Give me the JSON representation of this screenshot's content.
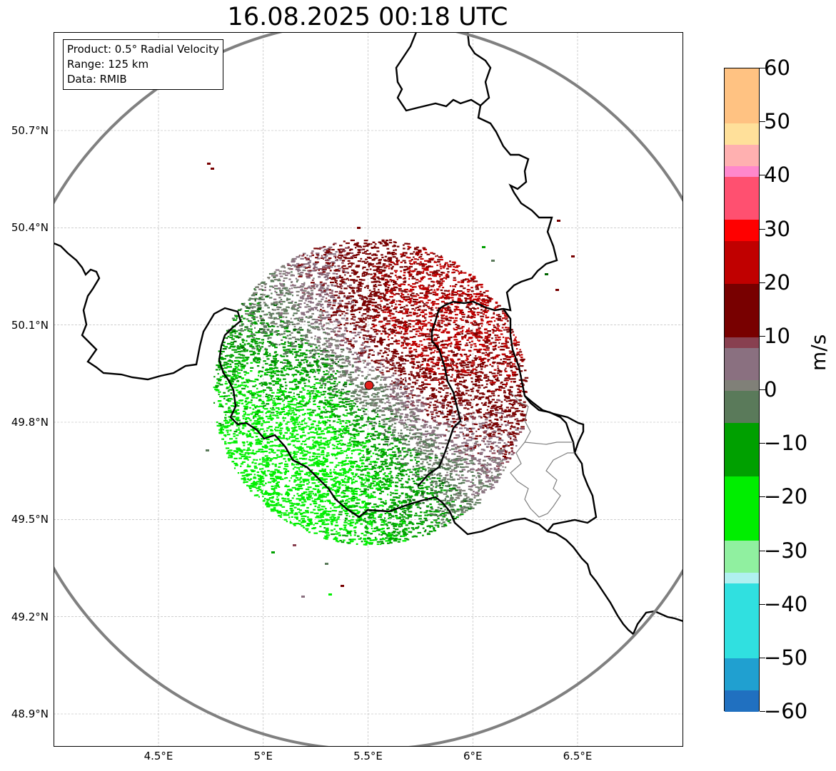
{
  "title": "16.08.2025 00:18 UTC",
  "info": {
    "product": "Product: 0.5° Radial Velocity",
    "range": "Range: 125 km",
    "data": "Data: RMIB"
  },
  "map": {
    "lon_range": [
      4.0,
      7.0
    ],
    "lat_range": [
      48.8,
      51.0
    ],
    "lon_ticks": [
      {
        "value": 4.5,
        "label": "4.5°E"
      },
      {
        "value": 5.0,
        "label": "5°E"
      },
      {
        "value": 5.5,
        "label": "5.5°E"
      },
      {
        "value": 6.0,
        "label": "6°E"
      },
      {
        "value": 6.5,
        "label": "6.5°E"
      }
    ],
    "lat_ticks": [
      {
        "value": 50.7,
        "label": "50.7°N"
      },
      {
        "value": 50.4,
        "label": "50.4°N"
      },
      {
        "value": 50.1,
        "label": "50.1°N"
      },
      {
        "value": 49.8,
        "label": "49.8°N"
      },
      {
        "value": 49.5,
        "label": "49.5°N"
      },
      {
        "value": 49.2,
        "label": "49.2°N"
      },
      {
        "value": 48.9,
        "label": "48.9°N"
      }
    ],
    "grid": true,
    "radar_site": {
      "lon": 5.505,
      "lat": 49.914
    },
    "range_ring_km": 125,
    "colors": {
      "range_ring": "#808080",
      "border": "#000000",
      "sub_border": "#808080",
      "radar_marker": "#e0201c",
      "grid": "#b0b0b0"
    }
  },
  "colorbar": {
    "unit": "m/s",
    "min": -60,
    "max": 60,
    "ticks": [
      {
        "value": 60,
        "label": "60"
      },
      {
        "value": 50,
        "label": "50"
      },
      {
        "value": 40,
        "label": "40"
      },
      {
        "value": 30,
        "label": "30"
      },
      {
        "value": 20,
        "label": "20"
      },
      {
        "value": 10,
        "label": "10"
      },
      {
        "value": 0,
        "label": "0"
      },
      {
        "value": -10,
        "label": "−10"
      },
      {
        "value": -20,
        "label": "−20"
      },
      {
        "value": -30,
        "label": "−30"
      },
      {
        "value": -40,
        "label": "−40"
      },
      {
        "value": -50,
        "label": "−50"
      },
      {
        "value": -60,
        "label": "−60"
      }
    ],
    "color_stops": [
      {
        "value": 60,
        "color": "#ff9955"
      },
      {
        "value": 50,
        "color": "#ffc282"
      },
      {
        "value": 46,
        "color": "#ffe09a"
      },
      {
        "value": 42,
        "color": "#ffb0b0"
      },
      {
        "value": 40,
        "color": "#ff88cc"
      },
      {
        "value": 33,
        "color": "#ff5070"
      },
      {
        "value": 28,
        "color": "#ff0000"
      },
      {
        "value": 20,
        "color": "#c00000"
      },
      {
        "value": 10,
        "color": "#780000"
      },
      {
        "value": 8,
        "color": "#884050"
      },
      {
        "value": 3,
        "color": "#8a7080"
      },
      {
        "value": 0,
        "color": "#808078"
      },
      {
        "value": -5,
        "color": "#5a7a5a"
      },
      {
        "value": -6,
        "color": "#006400"
      },
      {
        "value": -15,
        "color": "#00a000"
      },
      {
        "value": -28,
        "color": "#00ee00"
      },
      {
        "value": -33,
        "color": "#90f0a0"
      },
      {
        "value": -36,
        "color": "#b0f0f0"
      },
      {
        "value": -50,
        "color": "#30e0e0"
      },
      {
        "value": -55,
        "color": "#20a0d0"
      },
      {
        "value": -60,
        "color": "#2070c0"
      }
    ]
  }
}
